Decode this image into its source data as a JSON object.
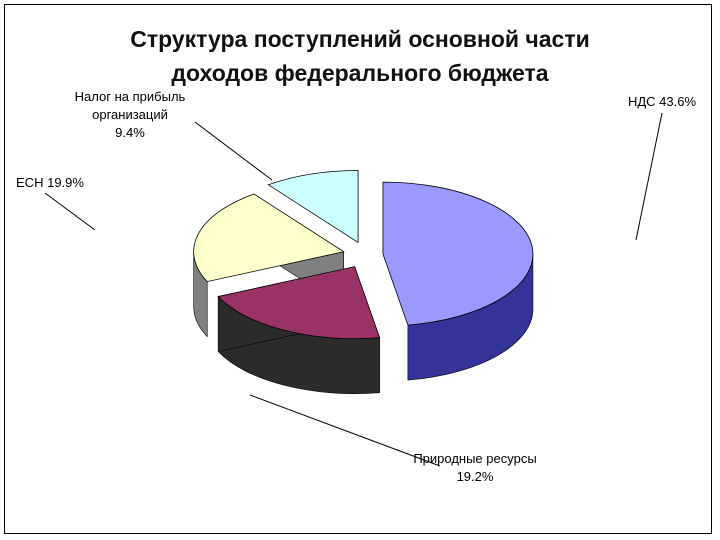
{
  "chart_data": {
    "type": "pie",
    "title": "Структура поступлений основной части доходов федерального бюджета",
    "categories": [
      "НДС",
      "Природные ресурсы",
      "ЕСН",
      "Налог на прибыль организаций"
    ],
    "values": [
      43.6,
      19.2,
      19.9,
      9.4
    ],
    "value_labels": [
      "43.6%",
      "19.2%",
      "19.9%",
      "9.4%"
    ],
    "colors": [
      "#9999ff",
      "#993366",
      "#ffffcc",
      "#ccffff"
    ],
    "side_colors": [
      "#333399",
      "#2b2b2b",
      "#808080",
      "#8a9a9a"
    ]
  }
}
